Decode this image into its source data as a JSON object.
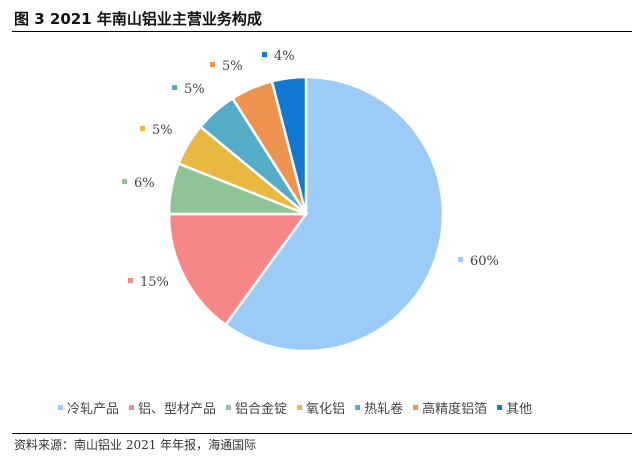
{
  "figure": {
    "title": "图 3 2021 年南山铝业主营业务构成",
    "source": "资料来源：南山铝业 2021 年年报，海通国际"
  },
  "chart_data": {
    "type": "pie",
    "categories": [
      "冷轧产品",
      "铝、型材产品",
      "铝合金锭",
      "氧化铝",
      "热轧卷",
      "高精度铝箔",
      "其他"
    ],
    "values": [
      60,
      15,
      6,
      5,
      5,
      5,
      4
    ],
    "labels": [
      "60%",
      "15%",
      "6%",
      "5%",
      "5%",
      "5%",
      "4%"
    ],
    "colors": [
      "#9dcbf7",
      "#f78686",
      "#8fc499",
      "#e8b842",
      "#55acc6",
      "#ef9450",
      "#1279d2"
    ],
    "start_angle": "12 o'clock, clockwise",
    "legend": "bottom"
  }
}
